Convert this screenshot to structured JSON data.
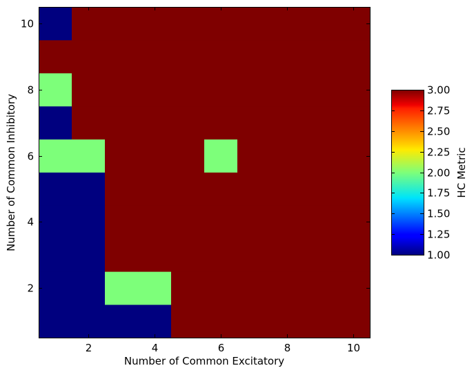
{
  "chart_data": {
    "type": "heatmap",
    "title": "",
    "xlabel": "Number of Common Excitatory",
    "ylabel": "Number of Common Inhibitory",
    "x": [
      1,
      2,
      3,
      4,
      5,
      6,
      7,
      8,
      9,
      10
    ],
    "y": [
      1,
      2,
      3,
      4,
      5,
      6,
      7,
      8,
      9,
      10
    ],
    "xlim": [
      0.5,
      10.5
    ],
    "ylim": [
      0.5,
      10.5
    ],
    "x_ticks": [
      2,
      4,
      6,
      8,
      10
    ],
    "y_ticks": [
      2,
      4,
      6,
      8,
      10
    ],
    "values": [
      [
        1,
        1,
        1,
        1,
        3,
        3,
        3,
        3,
        3,
        3
      ],
      [
        1,
        1,
        2,
        2,
        3,
        3,
        3,
        3,
        3,
        3
      ],
      [
        1,
        1,
        3,
        3,
        3,
        3,
        3,
        3,
        3,
        3
      ],
      [
        1,
        1,
        3,
        3,
        3,
        3,
        3,
        3,
        3,
        3
      ],
      [
        1,
        1,
        3,
        3,
        3,
        3,
        3,
        3,
        3,
        3
      ],
      [
        2,
        2,
        3,
        3,
        3,
        2,
        3,
        3,
        3,
        3
      ],
      [
        1,
        3,
        3,
        3,
        3,
        3,
        3,
        3,
        3,
        3
      ],
      [
        2,
        3,
        3,
        3,
        3,
        3,
        3,
        3,
        3,
        3
      ],
      [
        3,
        3,
        3,
        3,
        3,
        3,
        3,
        3,
        3,
        3
      ],
      [
        1,
        3,
        3,
        3,
        3,
        3,
        3,
        3,
        3,
        3
      ]
    ],
    "colorbar": {
      "label": "HC Metric",
      "colormap": "jet",
      "vmin": 1.0,
      "vmax": 3.0,
      "ticks": [
        "1.00",
        "1.25",
        "1.50",
        "1.75",
        "2.00",
        "2.25",
        "2.50",
        "2.75",
        "3.00"
      ]
    },
    "grid": false,
    "legend": "none"
  }
}
